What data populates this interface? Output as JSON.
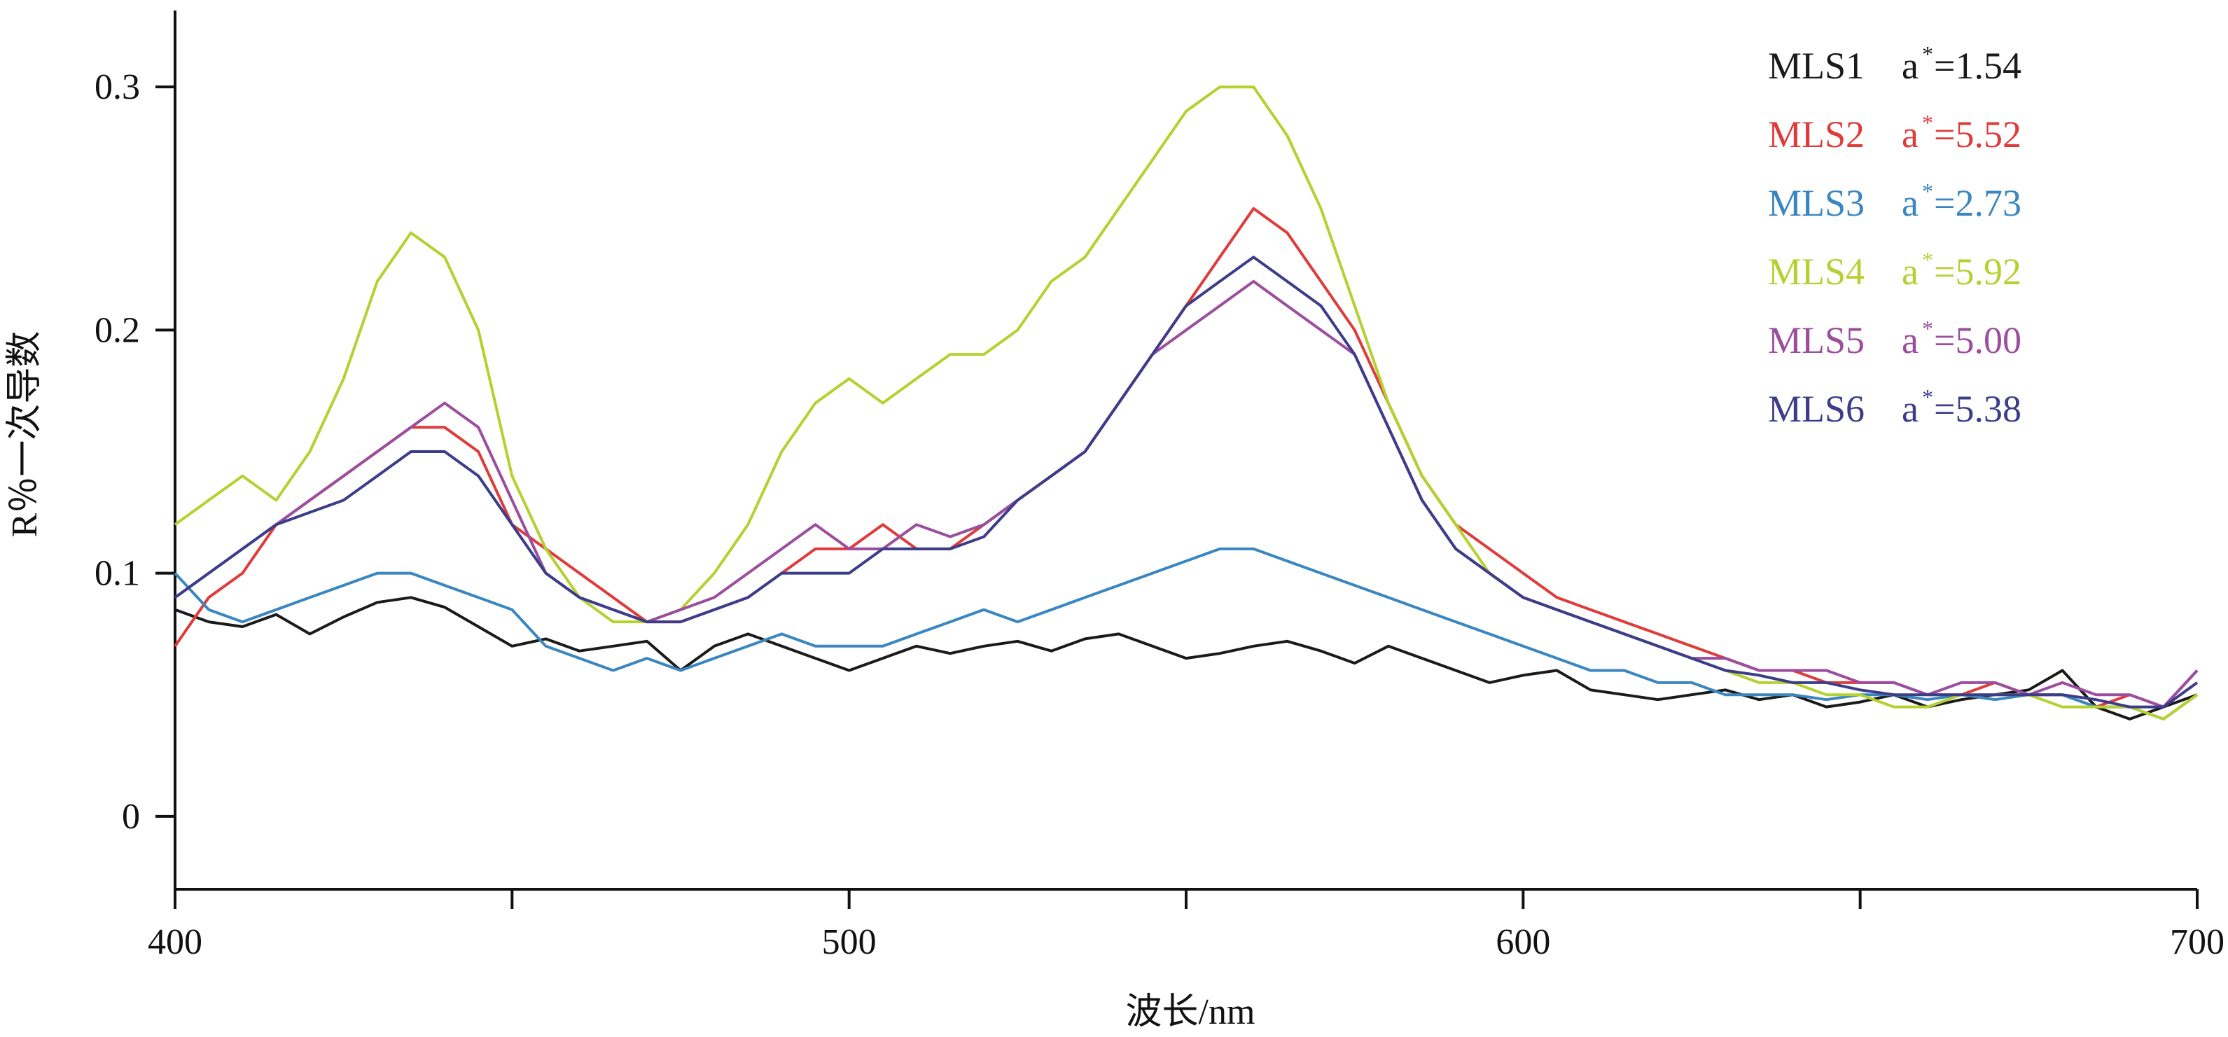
{
  "chart_data": {
    "type": "line",
    "title": "",
    "xlabel": "波长/nm",
    "ylabel": "R％一次导数",
    "xlim": [
      400,
      700
    ],
    "ylim": [
      -0.03,
      0.33
    ],
    "x_ticks": [
      400,
      500,
      600,
      700
    ],
    "x_minor_ticks": [
      450,
      550,
      650
    ],
    "y_ticks": [
      0,
      0.1,
      0.2,
      0.3
    ],
    "x_tick_labels": [
      "400",
      "500",
      "600",
      "700"
    ],
    "y_tick_labels": [
      "0",
      "0.1",
      "0.2",
      "0.3"
    ],
    "grid": false,
    "legend_position": "top-right",
    "x": [
      400,
      405,
      410,
      415,
      420,
      425,
      430,
      435,
      440,
      445,
      450,
      455,
      460,
      465,
      470,
      475,
      480,
      485,
      490,
      495,
      500,
      505,
      510,
      515,
      520,
      525,
      530,
      535,
      540,
      545,
      550,
      555,
      560,
      565,
      570,
      575,
      580,
      585,
      590,
      595,
      600,
      605,
      610,
      615,
      620,
      625,
      630,
      635,
      640,
      645,
      650,
      655,
      660,
      665,
      670,
      675,
      680,
      685,
      690,
      695,
      700
    ],
    "series": [
      {
        "name": "MLS1",
        "a_label": "a",
        "a_sup": "*",
        "a_value": "=1.54",
        "color": "#1a1a1a",
        "values": [
          0.085,
          0.08,
          0.078,
          0.083,
          0.075,
          0.082,
          0.088,
          0.09,
          0.086,
          0.078,
          0.07,
          0.073,
          0.068,
          0.07,
          0.072,
          0.06,
          0.07,
          0.075,
          0.07,
          0.065,
          0.06,
          0.065,
          0.07,
          0.067,
          0.07,
          0.072,
          0.068,
          0.073,
          0.075,
          0.07,
          0.065,
          0.067,
          0.07,
          0.072,
          0.068,
          0.063,
          0.07,
          0.065,
          0.06,
          0.055,
          0.058,
          0.06,
          0.052,
          0.05,
          0.048,
          0.05,
          0.052,
          0.048,
          0.05,
          0.045,
          0.047,
          0.05,
          0.045,
          0.048,
          0.05,
          0.052,
          0.06,
          0.045,
          0.04,
          0.045,
          0.05
        ]
      },
      {
        "name": "MLS2",
        "a_label": "a",
        "a_sup": "*",
        "a_value": "=5.52",
        "color": "#e03b3b",
        "values": [
          0.07,
          0.09,
          0.1,
          0.12,
          0.13,
          0.14,
          0.15,
          0.16,
          0.16,
          0.15,
          0.12,
          0.11,
          0.1,
          0.09,
          0.08,
          0.08,
          0.085,
          0.09,
          0.1,
          0.11,
          0.11,
          0.12,
          0.11,
          0.11,
          0.12,
          0.13,
          0.14,
          0.15,
          0.17,
          0.19,
          0.21,
          0.23,
          0.25,
          0.24,
          0.22,
          0.2,
          0.17,
          0.14,
          0.12,
          0.11,
          0.1,
          0.09,
          0.085,
          0.08,
          0.075,
          0.07,
          0.065,
          0.06,
          0.06,
          0.055,
          0.055,
          0.055,
          0.05,
          0.05,
          0.055,
          0.05,
          0.05,
          0.045,
          0.05,
          0.045,
          0.06
        ]
      },
      {
        "name": "MLS3",
        "a_label": "a",
        "a_sup": "*",
        "a_value": "=2.73",
        "color": "#3a86c0",
        "values": [
          0.1,
          0.085,
          0.08,
          0.085,
          0.09,
          0.095,
          0.1,
          0.1,
          0.095,
          0.09,
          0.085,
          0.07,
          0.065,
          0.06,
          0.065,
          0.06,
          0.065,
          0.07,
          0.075,
          0.07,
          0.07,
          0.07,
          0.075,
          0.08,
          0.085,
          0.08,
          0.085,
          0.09,
          0.095,
          0.1,
          0.105,
          0.11,
          0.11,
          0.105,
          0.1,
          0.095,
          0.09,
          0.085,
          0.08,
          0.075,
          0.07,
          0.065,
          0.06,
          0.06,
          0.055,
          0.055,
          0.05,
          0.05,
          0.05,
          0.048,
          0.05,
          0.05,
          0.048,
          0.05,
          0.048,
          0.05,
          0.05,
          0.045,
          0.045,
          0.04,
          0.05
        ]
      },
      {
        "name": "MLS4",
        "a_label": "a",
        "a_sup": "*",
        "a_value": "=5.92",
        "color": "#b5d130",
        "values": [
          0.12,
          0.13,
          0.14,
          0.13,
          0.15,
          0.18,
          0.22,
          0.24,
          0.23,
          0.2,
          0.14,
          0.11,
          0.09,
          0.08,
          0.08,
          0.085,
          0.1,
          0.12,
          0.15,
          0.17,
          0.18,
          0.17,
          0.18,
          0.19,
          0.19,
          0.2,
          0.22,
          0.23,
          0.25,
          0.27,
          0.29,
          0.3,
          0.3,
          0.28,
          0.25,
          0.21,
          0.17,
          0.14,
          0.12,
          0.1,
          0.09,
          0.085,
          0.08,
          0.075,
          0.07,
          0.065,
          0.06,
          0.055,
          0.055,
          0.05,
          0.05,
          0.045,
          0.045,
          0.05,
          0.05,
          0.05,
          0.045,
          0.045,
          0.045,
          0.04,
          0.05
        ]
      },
      {
        "name": "MLS5",
        "a_label": "a",
        "a_sup": "*",
        "a_value": "=5.00",
        "color": "#9b4d9e",
        "values": [
          0.09,
          0.1,
          0.11,
          0.12,
          0.13,
          0.14,
          0.15,
          0.16,
          0.17,
          0.16,
          0.13,
          0.1,
          0.09,
          0.085,
          0.08,
          0.085,
          0.09,
          0.1,
          0.11,
          0.12,
          0.11,
          0.11,
          0.12,
          0.115,
          0.12,
          0.13,
          0.14,
          0.15,
          0.17,
          0.19,
          0.2,
          0.21,
          0.22,
          0.21,
          0.2,
          0.19,
          0.16,
          0.13,
          0.11,
          0.1,
          0.09,
          0.085,
          0.08,
          0.075,
          0.07,
          0.065,
          0.065,
          0.06,
          0.06,
          0.06,
          0.055,
          0.055,
          0.05,
          0.055,
          0.055,
          0.05,
          0.055,
          0.05,
          0.05,
          0.045,
          0.06
        ]
      },
      {
        "name": "MLS6",
        "a_label": "a",
        "a_sup": "*",
        "a_value": "=5.38",
        "color": "#3c3d8a",
        "values": [
          0.09,
          0.1,
          0.11,
          0.12,
          0.125,
          0.13,
          0.14,
          0.15,
          0.15,
          0.14,
          0.12,
          0.1,
          0.09,
          0.085,
          0.08,
          0.08,
          0.085,
          0.09,
          0.1,
          0.1,
          0.1,
          0.11,
          0.11,
          0.11,
          0.115,
          0.13,
          0.14,
          0.15,
          0.17,
          0.19,
          0.21,
          0.22,
          0.23,
          0.22,
          0.21,
          0.19,
          0.16,
          0.13,
          0.11,
          0.1,
          0.09,
          0.085,
          0.08,
          0.075,
          0.07,
          0.065,
          0.06,
          0.058,
          0.055,
          0.055,
          0.052,
          0.05,
          0.05,
          0.05,
          0.05,
          0.05,
          0.05,
          0.048,
          0.045,
          0.045,
          0.055
        ]
      }
    ]
  }
}
